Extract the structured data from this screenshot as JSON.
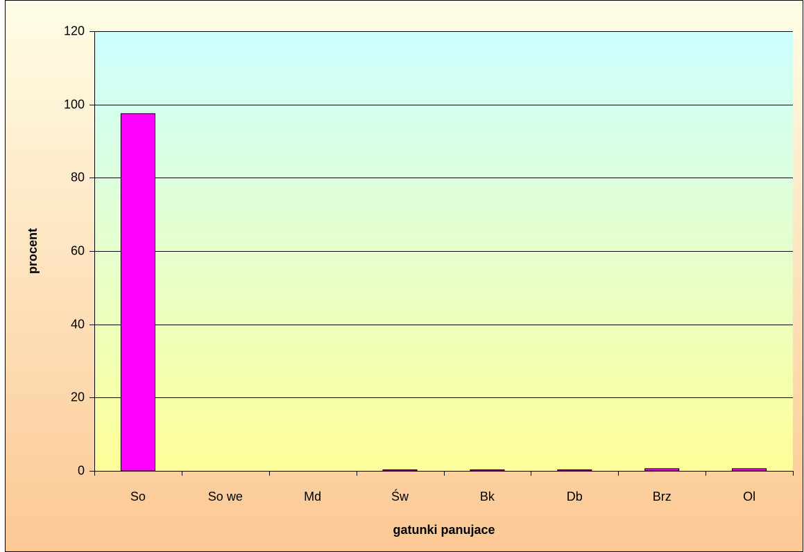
{
  "chart_data": {
    "type": "bar",
    "categories": [
      "So",
      "So we",
      "Md",
      "Św",
      "Bk",
      "Db",
      "Brz",
      "Ol"
    ],
    "values": [
      97.5,
      0,
      0,
      0.3,
      0.3,
      0.3,
      0.6,
      0.6
    ],
    "color": "#ff00ff",
    "ylim": [
      0,
      120
    ],
    "yticks": [
      0,
      20,
      40,
      60,
      80,
      100,
      120
    ],
    "grid": true,
    "x_label": "gatunki panujace",
    "y_label": "procent"
  }
}
